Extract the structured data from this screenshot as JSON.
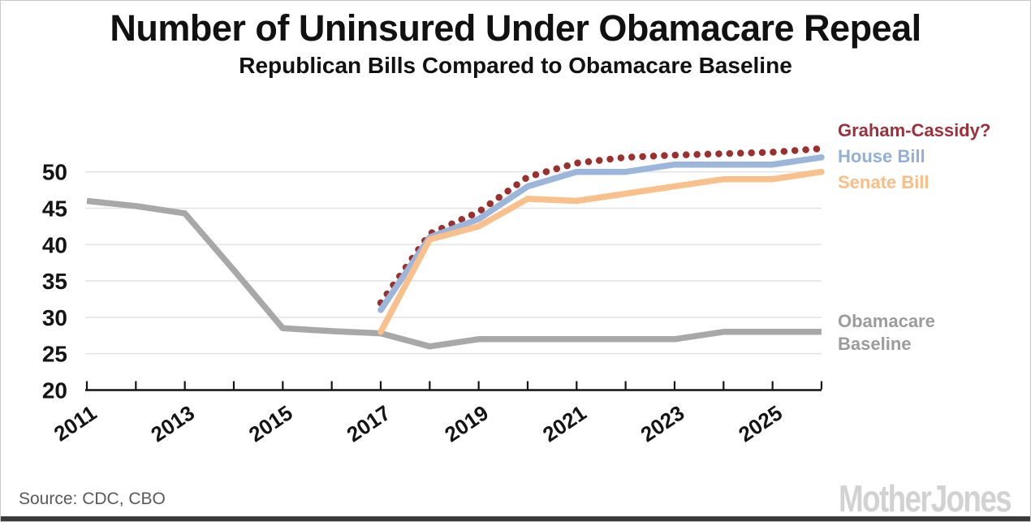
{
  "page": {
    "title": "Number of Uninsured Under Obamacare Repeal",
    "subtitle": "Republican Bills Compared to Obamacare Baseline",
    "source": "Source: CDC, CBO",
    "logo": "Mother Jones"
  },
  "colors": {
    "graham_text": "#9e3039",
    "house_text": "#92afd7",
    "senate_text": "#f9bd85",
    "baseline_text": "#9c9c9c",
    "axis": "#141414",
    "gridline": "#e4e4e4",
    "bottom_bar": "#3a3a3a",
    "logo_gray": "#d2d2d2"
  },
  "chart_data": {
    "type": "line",
    "title": "Number of Uninsured Under Obamacare Repeal",
    "subtitle": "Republican Bills Compared to Obamacare Baseline",
    "xlabel": "",
    "ylabel": "",
    "xlim": [
      2011,
      2026
    ],
    "ylim": [
      20,
      53.5
    ],
    "y_ticks": [
      20,
      25,
      30,
      35,
      40,
      45,
      50
    ],
    "x_tick_labels": [
      "2011",
      "2013",
      "2015",
      "2017",
      "2019",
      "2021",
      "2023",
      "2025"
    ],
    "grid": "horizontal",
    "legend_position": "right",
    "series": [
      {
        "name": "Obamacare Baseline",
        "color": "#a8a8a8",
        "style": "solid",
        "x": [
          2011,
          2012,
          2013,
          2014,
          2015,
          2016,
          2017,
          2018,
          2019,
          2020,
          2021,
          2022,
          2023,
          2024,
          2025,
          2026
        ],
        "values": [
          46,
          45.3,
          44.3,
          36.5,
          28.5,
          28.1,
          27.8,
          26,
          27,
          27,
          27,
          27,
          27,
          28,
          28,
          28
        ]
      },
      {
        "name": "Graham-Cassidy?",
        "color": "#9c302e",
        "style": "dotted",
        "x": [
          2017,
          2018,
          2019,
          2020,
          2021,
          2022,
          2023,
          2024,
          2025,
          2026
        ],
        "values": [
          32,
          41.5,
          44.5,
          49.3,
          51.2,
          52,
          52.3,
          52.5,
          52.7,
          53.2
        ]
      },
      {
        "name": "House Bill",
        "color": "#9bb5db",
        "style": "solid",
        "x": [
          2017,
          2018,
          2019,
          2020,
          2021,
          2022,
          2023,
          2024,
          2025,
          2026
        ],
        "values": [
          31,
          41,
          43.5,
          48,
          50,
          50,
          51,
          51,
          51,
          52
        ]
      },
      {
        "name": "Senate Bill",
        "color": "#f9c08c",
        "style": "solid",
        "x": [
          2017,
          2018,
          2019,
          2020,
          2021,
          2022,
          2023,
          2024,
          2025,
          2026
        ],
        "values": [
          28,
          40.7,
          42.5,
          46.3,
          46,
          47,
          48,
          49,
          49,
          50
        ]
      }
    ],
    "legend": {
      "graham": "Graham-Cassidy?",
      "house": "House Bill",
      "senate": "Senate Bill",
      "baseline_line1": "Obamacare",
      "baseline_line2": "Baseline"
    }
  }
}
